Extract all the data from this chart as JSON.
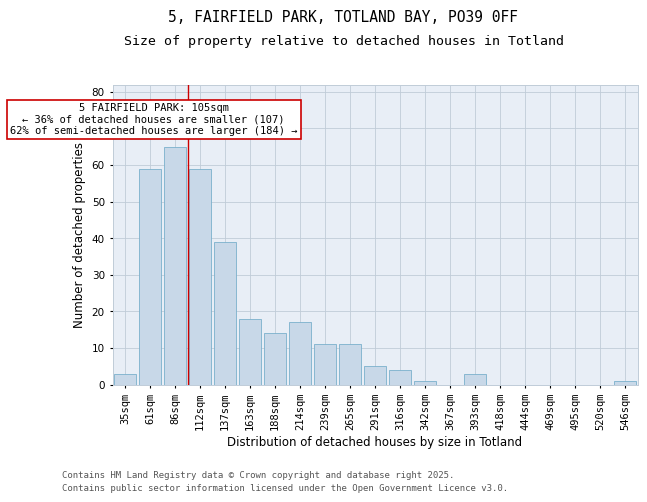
{
  "title_line1": "5, FAIRFIELD PARK, TOTLAND BAY, PO39 0FF",
  "title_line2": "Size of property relative to detached houses in Totland",
  "xlabel": "Distribution of detached houses by size in Totland",
  "ylabel": "Number of detached properties",
  "categories": [
    "35sqm",
    "61sqm",
    "86sqm",
    "112sqm",
    "137sqm",
    "163sqm",
    "188sqm",
    "214sqm",
    "239sqm",
    "265sqm",
    "291sqm",
    "316sqm",
    "342sqm",
    "367sqm",
    "393sqm",
    "418sqm",
    "444sqm",
    "469sqm",
    "495sqm",
    "520sqm",
    "546sqm"
  ],
  "values": [
    3,
    59,
    65,
    59,
    39,
    18,
    14,
    17,
    11,
    11,
    5,
    4,
    1,
    0,
    3,
    0,
    0,
    0,
    0,
    0,
    1
  ],
  "bar_color": "#c8d8e8",
  "bar_edge_color": "#7ab0cc",
  "red_line_x": 2.5,
  "annotation_text": "5 FAIRFIELD PARK: 105sqm\n← 36% of detached houses are smaller (107)\n62% of semi-detached houses are larger (184) →",
  "annotation_box_color": "white",
  "annotation_box_edgecolor": "#cc0000",
  "red_line_color": "#cc0000",
  "ylim": [
    0,
    82
  ],
  "yticks": [
    0,
    10,
    20,
    30,
    40,
    50,
    60,
    70,
    80
  ],
  "grid_color": "#c0ccd8",
  "background_color": "#e8eef6",
  "footer_text": "Contains HM Land Registry data © Crown copyright and database right 2025.\nContains public sector information licensed under the Open Government Licence v3.0.",
  "title_fontsize": 10.5,
  "subtitle_fontsize": 9.5,
  "axis_label_fontsize": 8.5,
  "tick_fontsize": 7.5,
  "annotation_fontsize": 7.5,
  "footer_fontsize": 6.5
}
